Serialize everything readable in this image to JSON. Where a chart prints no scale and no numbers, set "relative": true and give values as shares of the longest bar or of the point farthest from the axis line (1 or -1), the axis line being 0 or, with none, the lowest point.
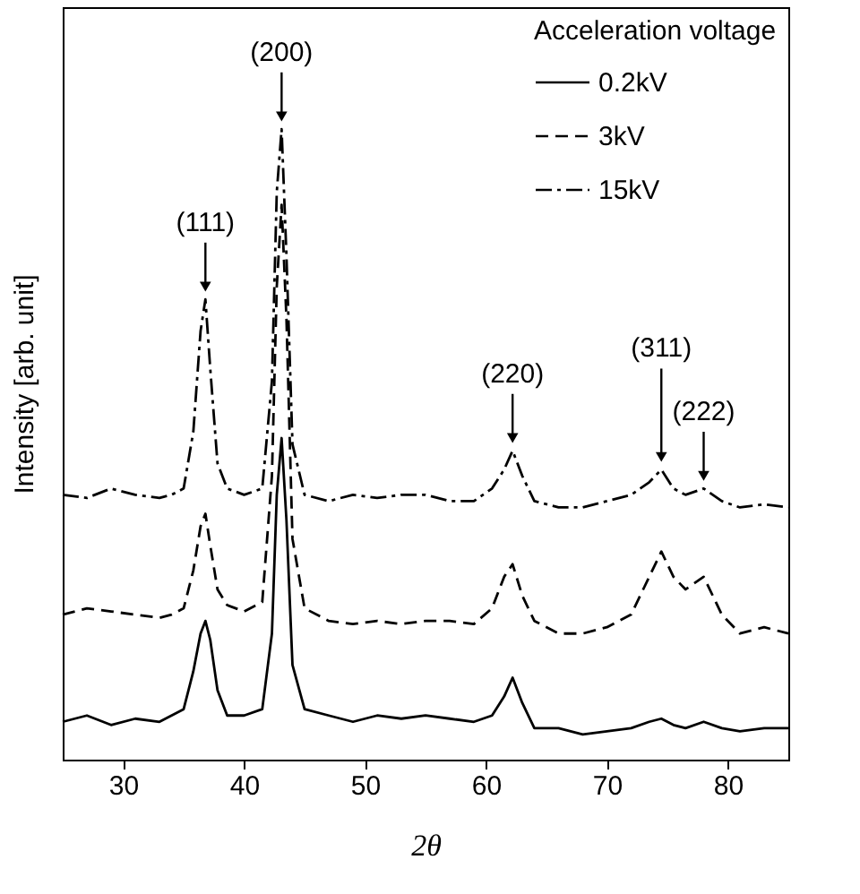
{
  "chart_data": {
    "type": "line",
    "relative": true,
    "xlabel": "2θ",
    "ylabel": "Intensity [arb. unit]",
    "legend_title": "Acceleration voltage",
    "legend": "top right",
    "grid": false,
    "marker": "none",
    "xlim": [
      25,
      85
    ],
    "xticks": [
      30,
      40,
      50,
      60,
      70,
      80
    ],
    "x": [
      25,
      27,
      29,
      31,
      33,
      34,
      35,
      35.8,
      36.4,
      36.8,
      37.2,
      37.8,
      38.6,
      40,
      41.5,
      42.3,
      42.7,
      43.1,
      43.5,
      44,
      45,
      47,
      49,
      51,
      53,
      55,
      57,
      59,
      60.5,
      61.5,
      62.2,
      63,
      64,
      66,
      68,
      70,
      72,
      73.5,
      74.5,
      75.5,
      76.5,
      78,
      79.5,
      81,
      83,
      85
    ],
    "series": [
      {
        "name": "0.2kV",
        "color": "#000000",
        "line_style": "solid",
        "values": [
          0.06,
          0.07,
          0.055,
          0.065,
          0.06,
          0.07,
          0.08,
          0.14,
          0.2,
          0.22,
          0.19,
          0.11,
          0.07,
          0.07,
          0.08,
          0.2,
          0.42,
          0.51,
          0.38,
          0.15,
          0.08,
          0.07,
          0.06,
          0.07,
          0.065,
          0.07,
          0.065,
          0.06,
          0.07,
          0.1,
          0.13,
          0.09,
          0.05,
          0.05,
          0.04,
          0.045,
          0.05,
          0.06,
          0.065,
          0.055,
          0.05,
          0.06,
          0.05,
          0.045,
          0.05,
          0.05
        ]
      },
      {
        "name": "3kV",
        "color": "#000000",
        "line_style": "dashed",
        "values": [
          0.23,
          0.24,
          0.235,
          0.23,
          0.225,
          0.23,
          0.24,
          0.3,
          0.37,
          0.39,
          0.34,
          0.27,
          0.245,
          0.235,
          0.25,
          0.45,
          0.75,
          0.88,
          0.7,
          0.35,
          0.24,
          0.22,
          0.215,
          0.22,
          0.215,
          0.22,
          0.22,
          0.215,
          0.24,
          0.29,
          0.31,
          0.26,
          0.22,
          0.2,
          0.2,
          0.21,
          0.23,
          0.29,
          0.33,
          0.29,
          0.27,
          0.29,
          0.23,
          0.2,
          0.21,
          0.2
        ]
      },
      {
        "name": "15kV",
        "color": "#000000",
        "line_style": "dashdot",
        "values": [
          0.42,
          0.415,
          0.43,
          0.42,
          0.415,
          0.42,
          0.43,
          0.52,
          0.68,
          0.73,
          0.62,
          0.47,
          0.43,
          0.42,
          0.43,
          0.6,
          0.9,
          1,
          0.8,
          0.5,
          0.42,
          0.41,
          0.42,
          0.415,
          0.42,
          0.42,
          0.41,
          0.41,
          0.43,
          0.46,
          0.49,
          0.45,
          0.41,
          0.4,
          0.4,
          0.41,
          0.42,
          0.44,
          0.46,
          0.43,
          0.42,
          0.43,
          0.41,
          0.4,
          0.405,
          0.4
        ]
      }
    ],
    "annotations": [
      {
        "text": "(111)",
        "x": 36.8,
        "y": 0.73
      },
      {
        "text": "(200)",
        "x": 43.1,
        "y": 1
      },
      {
        "text": "(220)",
        "x": 62.2,
        "y": 0.49
      },
      {
        "text": "(311)",
        "x": 74.5,
        "y": 0.46
      },
      {
        "text": "(222)",
        "x": 78,
        "y": 0.43
      }
    ]
  }
}
